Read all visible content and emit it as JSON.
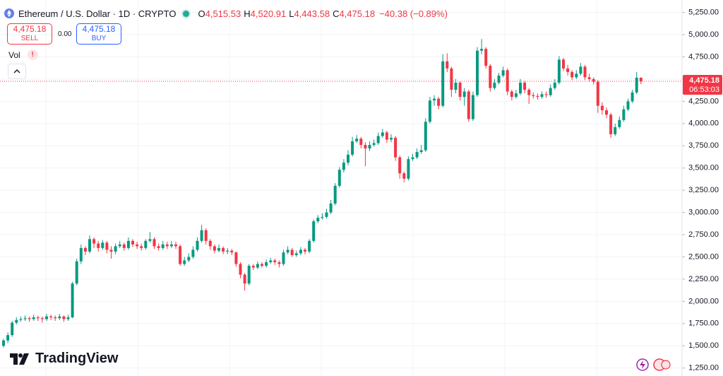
{
  "header": {
    "symbol": "Ethereum / U.S. Dollar · 1D · CRYPTO",
    "ohlc": [
      {
        "key": "O",
        "value": "4,515.53"
      },
      {
        "key": "H",
        "value": "4,520.91"
      },
      {
        "key": "L",
        "value": "4,443.58"
      },
      {
        "key": "C",
        "value": "4,475.18"
      }
    ],
    "change": "−40.38 (−0.89%)"
  },
  "trade": {
    "sell_price": "4,475.18",
    "sell": "SELL",
    "spread": "0.00",
    "buy_price": "4,475.18",
    "buy": "BUY"
  },
  "indicator": {
    "name": "Vol",
    "alert": "!"
  },
  "brand": "TradingView",
  "chart_data": {
    "type": "candlestick",
    "open": [
      1500,
      1560,
      1620,
      1760,
      1790,
      1800,
      1810,
      1800,
      1820,
      1810,
      1800,
      1830,
      1820,
      1810,
      1830,
      1800,
      1820,
      2200,
      2450,
      2600,
      2560,
      2700,
      2650,
      2600,
      2660,
      2580,
      2560,
      2620,
      2640,
      2600,
      2680,
      2640,
      2620,
      2600,
      2680,
      2700,
      2620,
      2600,
      2640,
      2620,
      2640,
      2620,
      2420,
      2460,
      2500,
      2580,
      2680,
      2800,
      2680,
      2620,
      2570,
      2600,
      2560,
      2570,
      2550,
      2420,
      2300,
      2200,
      2400,
      2380,
      2420,
      2400,
      2440,
      2460,
      2440,
      2420,
      2550,
      2580,
      2520,
      2540,
      2580,
      2560,
      2680,
      2900,
      2940,
      2950,
      3000,
      3100,
      3300,
      3480,
      3560,
      3650,
      3800,
      3830,
      3760,
      3720,
      3760,
      3780,
      3860,
      3900,
      3820,
      3840,
      3620,
      3440,
      3380,
      3600,
      3620,
      3680,
      3700,
      4020,
      4260,
      4280,
      4200,
      4700,
      4620,
      4380,
      4460,
      4300,
      4360,
      4050,
      4320,
      4820,
      4840,
      4650,
      4400,
      4460,
      4540,
      4600,
      4360,
      4300,
      4340,
      4460,
      4380,
      4320,
      4310,
      4300,
      4330,
      4320,
      4400,
      4460,
      4720,
      4620,
      4580,
      4520,
      4560,
      4640,
      4520,
      4500,
      4470,
      4200,
      4150,
      4100,
      3880,
      3960,
      4040,
      4160,
      4250,
      4350,
      4515.53
    ],
    "high": [
      1580,
      1650,
      1780,
      1820,
      1830,
      1840,
      1830,
      1850,
      1840,
      1830,
      1860,
      1850,
      1840,
      1860,
      1840,
      1850,
      2220,
      2480,
      2640,
      2620,
      2740,
      2720,
      2680,
      2690,
      2680,
      2620,
      2650,
      2680,
      2660,
      2720,
      2700,
      2670,
      2650,
      2700,
      2780,
      2720,
      2650,
      2680,
      2670,
      2680,
      2670,
      2640,
      2500,
      2540,
      2620,
      2720,
      2860,
      2820,
      2700,
      2640,
      2640,
      2620,
      2600,
      2590,
      2560,
      2440,
      2320,
      2420,
      2420,
      2450,
      2440,
      2470,
      2490,
      2480,
      2460,
      2580,
      2620,
      2600,
      2570,
      2610,
      2600,
      2700,
      2920,
      2970,
      2990,
      3040,
      3140,
      3330,
      3510,
      3600,
      3700,
      3850,
      3870,
      3850,
      3790,
      3800,
      3820,
      3900,
      3940,
      3920,
      3880,
      3860,
      3640,
      3460,
      3630,
      3660,
      3720,
      3760,
      4060,
      4300,
      4320,
      4300,
      4780,
      4790,
      4640,
      4500,
      4480,
      4400,
      4380,
      4360,
      4860,
      4950,
      4860,
      4670,
      4500,
      4570,
      4640,
      4620,
      4380,
      4380,
      4500,
      4480,
      4400,
      4350,
      4340,
      4360,
      4360,
      4440,
      4500,
      4760,
      4740,
      4660,
      4600,
      4600,
      4680,
      4660,
      4560,
      4520,
      4490,
      4240,
      4180,
      4120,
      4000,
      4080,
      4200,
      4280,
      4380,
      4580,
      4520.91
    ],
    "low": [
      1480,
      1530,
      1600,
      1740,
      1770,
      1780,
      1770,
      1780,
      1780,
      1760,
      1780,
      1790,
      1780,
      1790,
      1770,
      1780,
      1810,
      2180,
      2420,
      2520,
      2540,
      2600,
      2560,
      2580,
      2540,
      2480,
      2530,
      2600,
      2570,
      2580,
      2610,
      2590,
      2570,
      2580,
      2660,
      2590,
      2570,
      2580,
      2590,
      2600,
      2590,
      2400,
      2400,
      2440,
      2480,
      2560,
      2660,
      2640,
      2580,
      2540,
      2550,
      2530,
      2530,
      2520,
      2390,
      2260,
      2120,
      2180,
      2350,
      2360,
      2380,
      2380,
      2420,
      2410,
      2380,
      2400,
      2530,
      2500,
      2500,
      2520,
      2530,
      2540,
      2660,
      2880,
      2920,
      2930,
      2980,
      3080,
      3280,
      3450,
      3530,
      3630,
      3780,
      3720,
      3520,
      3690,
      3740,
      3760,
      3840,
      3780,
      3790,
      3580,
      3380,
      3340,
      3360,
      3580,
      3600,
      3660,
      3680,
      4000,
      4200,
      4160,
      4180,
      4580,
      4300,
      4340,
      4260,
      4200,
      4020,
      4030,
      4300,
      4780,
      4620,
      4360,
      4380,
      4440,
      4520,
      4320,
      4260,
      4280,
      4320,
      4340,
      4220,
      4280,
      4270,
      4280,
      4290,
      4300,
      4380,
      4440,
      4590,
      4540,
      4490,
      4500,
      4540,
      4490,
      4470,
      4440,
      4120,
      4100,
      4060,
      3840,
      3860,
      3940,
      4020,
      4140,
      4230,
      4330,
      4443.58
    ],
    "close": [
      1560,
      1620,
      1760,
      1790,
      1800,
      1810,
      1800,
      1820,
      1810,
      1800,
      1830,
      1820,
      1810,
      1830,
      1800,
      1820,
      2200,
      2450,
      2600,
      2560,
      2700,
      2650,
      2600,
      2660,
      2580,
      2560,
      2620,
      2640,
      2600,
      2680,
      2640,
      2620,
      2600,
      2680,
      2700,
      2620,
      2600,
      2640,
      2620,
      2640,
      2620,
      2420,
      2460,
      2500,
      2580,
      2680,
      2800,
      2680,
      2620,
      2570,
      2600,
      2560,
      2570,
      2550,
      2420,
      2300,
      2200,
      2400,
      2380,
      2420,
      2400,
      2440,
      2460,
      2440,
      2420,
      2550,
      2580,
      2520,
      2540,
      2580,
      2560,
      2680,
      2900,
      2940,
      2950,
      3000,
      3100,
      3300,
      3480,
      3560,
      3650,
      3800,
      3830,
      3760,
      3720,
      3760,
      3780,
      3860,
      3900,
      3820,
      3840,
      3620,
      3440,
      3380,
      3600,
      3620,
      3680,
      3700,
      4020,
      4260,
      4280,
      4200,
      4700,
      4620,
      4380,
      4460,
      4300,
      4360,
      4050,
      4320,
      4820,
      4840,
      4650,
      4400,
      4460,
      4540,
      4600,
      4360,
      4300,
      4340,
      4460,
      4380,
      4320,
      4310,
      4300,
      4330,
      4320,
      4400,
      4460,
      4720,
      4620,
      4580,
      4520,
      4560,
      4640,
      4520,
      4500,
      4470,
      4200,
      4150,
      4100,
      3880,
      3960,
      4040,
      4160,
      4250,
      4350,
      4515.56,
      4475.18
    ],
    "up_color": "#089981",
    "down_color": "#f23645",
    "ylim": [
      1160,
      5390
    ],
    "yticks": [
      {
        "value": 1250,
        "label": "1,250.00"
      },
      {
        "value": 1500,
        "label": "1,500.00"
      },
      {
        "value": 1750,
        "label": "1,750.00"
      },
      {
        "value": 2000,
        "label": "2,000.00"
      },
      {
        "value": 2250,
        "label": "2,250.00"
      },
      {
        "value": 2500,
        "label": "2,500.00"
      },
      {
        "value": 2750,
        "label": "2,750.00"
      },
      {
        "value": 3000,
        "label": "3,000.00"
      },
      {
        "value": 3250,
        "label": "3,250.00"
      },
      {
        "value": 3500,
        "label": "3,500.00"
      },
      {
        "value": 3750,
        "label": "3,750.00"
      },
      {
        "value": 4000,
        "label": "4,000.00"
      },
      {
        "value": 4250,
        "label": "4,250.00"
      },
      {
        "value": 4500,
        "label": "4,500.00"
      },
      {
        "value": 4750,
        "label": "4,750.00"
      },
      {
        "value": 5000,
        "label": "5,000.00"
      },
      {
        "value": 5250,
        "label": "5,250.00"
      }
    ],
    "grid": true,
    "last_price": {
      "value": 4475.18,
      "label": "4,475.18"
    },
    "countdown": "06:53:03"
  }
}
